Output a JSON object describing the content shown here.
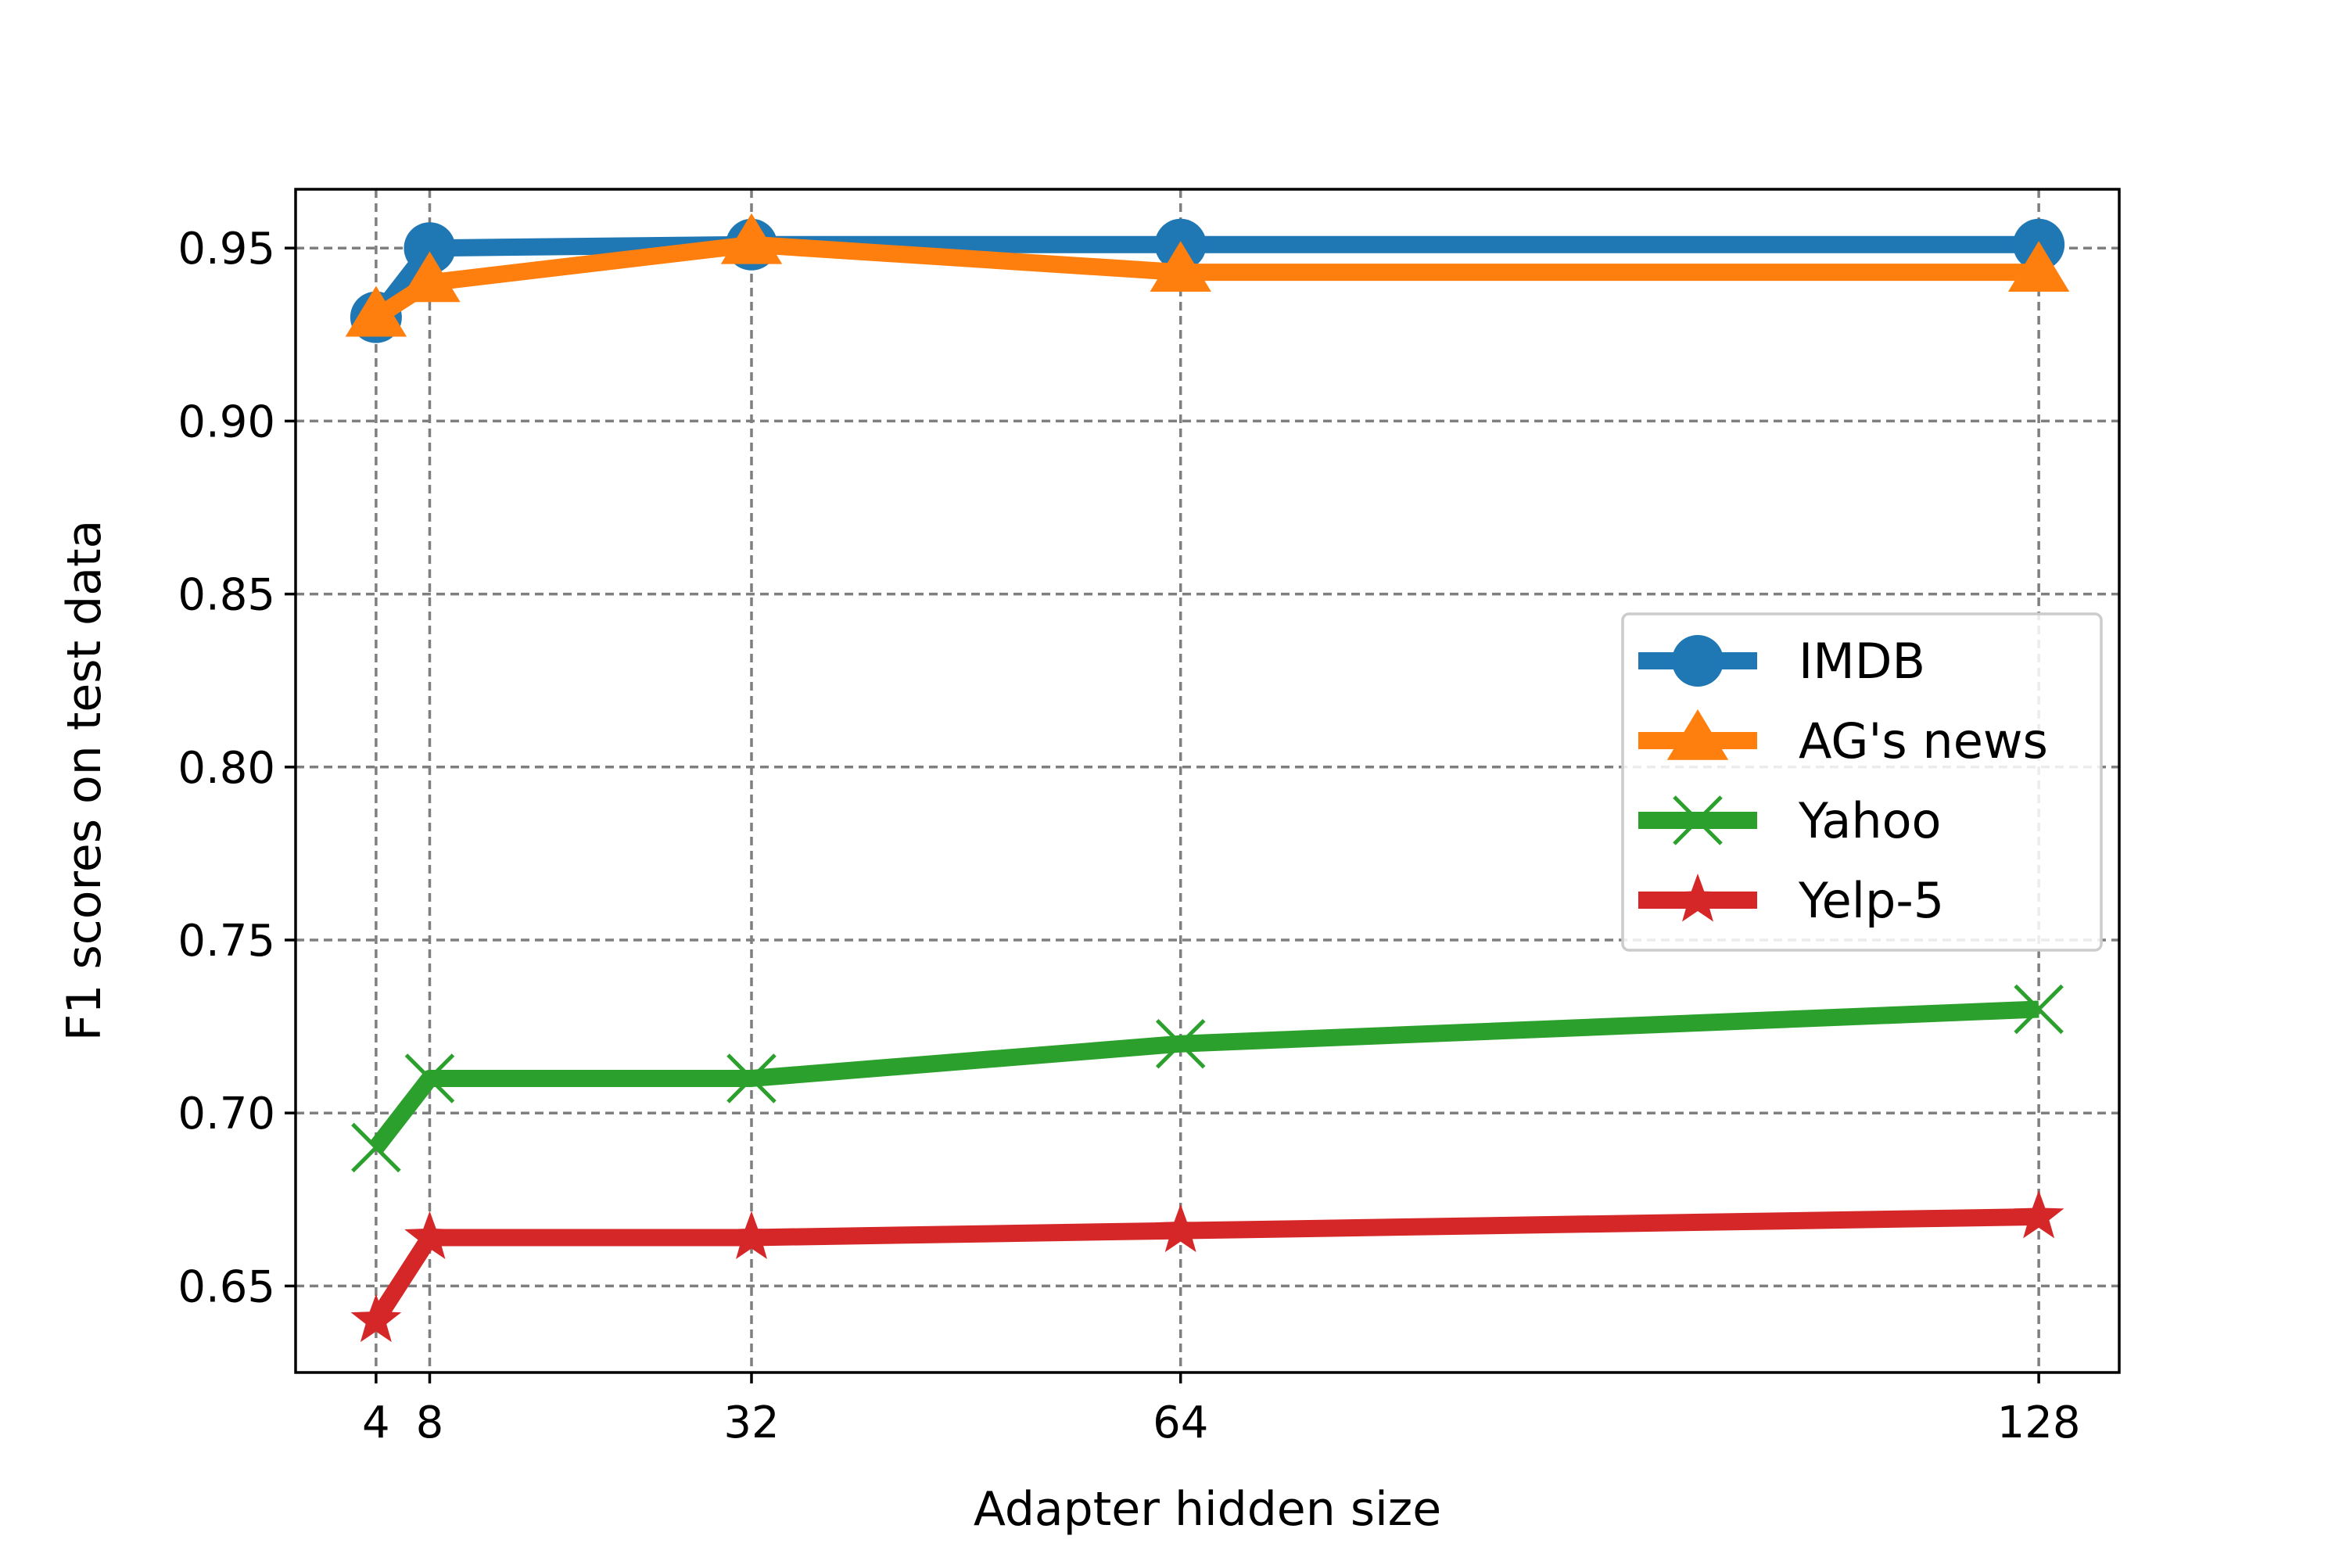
{
  "chart_data": {
    "type": "line",
    "title": "",
    "xlabel": "Adapter hidden size",
    "ylabel": "F1 scores on test data",
    "x": [
      4,
      8,
      32,
      64,
      128
    ],
    "xticks": [
      4,
      8,
      32,
      64,
      128
    ],
    "xtick_labels": [
      "4",
      "8",
      "32",
      "64",
      "128"
    ],
    "xlim": [
      -2,
      134
    ],
    "ylim": [
      0.625,
      0.967
    ],
    "yticks": [
      0.65,
      0.7,
      0.75,
      0.8,
      0.85,
      0.9,
      0.95
    ],
    "ytick_labels": [
      "0.65",
      "0.70",
      "0.75",
      "0.80",
      "0.85",
      "0.90",
      "0.95"
    ],
    "grid": true,
    "legend_position": "center-right",
    "series": [
      {
        "name": "IMDB",
        "values": [
          0.93,
          0.95,
          0.951,
          0.951,
          0.951
        ],
        "color": "#1f77b4",
        "marker": "circle"
      },
      {
        "name": "AG's news",
        "values": [
          0.93,
          0.94,
          0.951,
          0.943,
          0.943
        ],
        "color": "#ff7f0e",
        "marker": "triangle"
      },
      {
        "name": "Yahoo",
        "values": [
          0.69,
          0.71,
          0.71,
          0.72,
          0.73
        ],
        "color": "#2ca02c",
        "marker": "x"
      },
      {
        "name": "Yelp-5",
        "values": [
          0.64,
          0.664,
          0.664,
          0.666,
          0.67
        ],
        "color": "#d62728",
        "marker": "star"
      }
    ]
  }
}
